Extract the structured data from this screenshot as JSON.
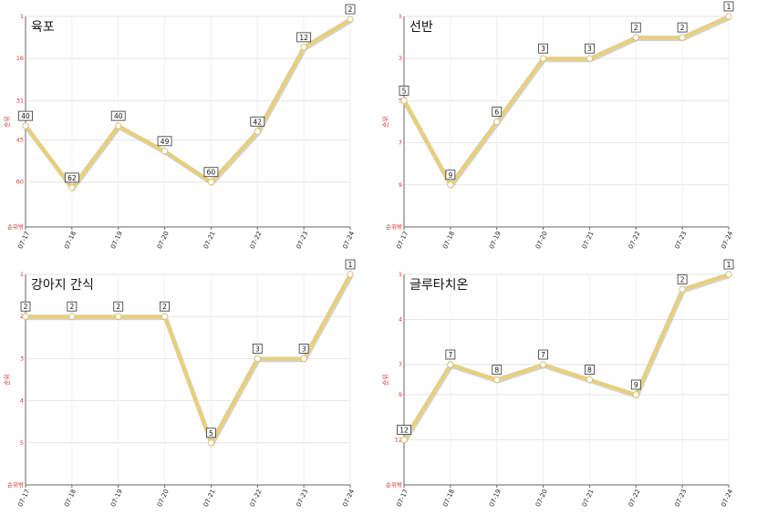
{
  "chart_data": [
    {
      "type": "line",
      "title": "육포",
      "ylabel": "순위",
      "y_bottom_label": "순위밖",
      "x": [
        "07-17",
        "07-18",
        "07-19",
        "07-20",
        "07-21",
        "07-22",
        "07-23",
        "07-24"
      ],
      "y_ticks": [
        1,
        16,
        31,
        45,
        60
      ],
      "y_tick_labels": [
        "1",
        "16",
        "31",
        "45",
        "60"
      ],
      "y_range": [
        1,
        76
      ],
      "values": [
        40,
        62,
        40,
        49,
        60,
        42,
        12,
        2
      ],
      "color": "#e8cf7a"
    },
    {
      "type": "line",
      "title": "선반",
      "ylabel": "순위",
      "y_bottom_label": "순위밖",
      "x": [
        "07-17",
        "07-18",
        "07-19",
        "07-20",
        "07-21",
        "07-22",
        "07-23",
        "07-24"
      ],
      "y_ticks": [
        1,
        3,
        5,
        7,
        9
      ],
      "y_tick_labels": [
        "1",
        "3",
        "5",
        "7",
        "9"
      ],
      "y_range": [
        1,
        11
      ],
      "values": [
        5,
        9,
        6,
        3,
        3,
        2,
        2,
        1
      ],
      "color": "#e8cf7a"
    },
    {
      "type": "line",
      "title": "강아지 간식",
      "ylabel": "순위",
      "y_bottom_label": "순위밖",
      "x": [
        "07-17",
        "07-18",
        "07-19",
        "07-20",
        "07-21",
        "07-22",
        "07-23",
        "07-24"
      ],
      "y_ticks": [
        1,
        2,
        3,
        4,
        5
      ],
      "y_tick_labels": [
        "1",
        "2",
        "3",
        "4",
        "5"
      ],
      "y_range": [
        1,
        6
      ],
      "values": [
        2,
        2,
        2,
        2,
        5,
        3,
        3,
        1
      ],
      "color": "#e8cf7a"
    },
    {
      "type": "line",
      "title": "글루타치온",
      "ylabel": "순위",
      "y_bottom_label": "순위밖",
      "x": [
        "07-17",
        "07-18",
        "07-19",
        "07-20",
        "07-21",
        "07-22",
        "07-23",
        "07-24"
      ],
      "y_ticks": [
        1,
        4,
        7,
        9,
        12
      ],
      "y_tick_labels": [
        "1",
        "4",
        "7",
        "9",
        "12"
      ],
      "y_range": [
        1,
        15
      ],
      "values": [
        12,
        7,
        8,
        7,
        8,
        9,
        2,
        1
      ],
      "color": "#e8cf7a"
    }
  ]
}
